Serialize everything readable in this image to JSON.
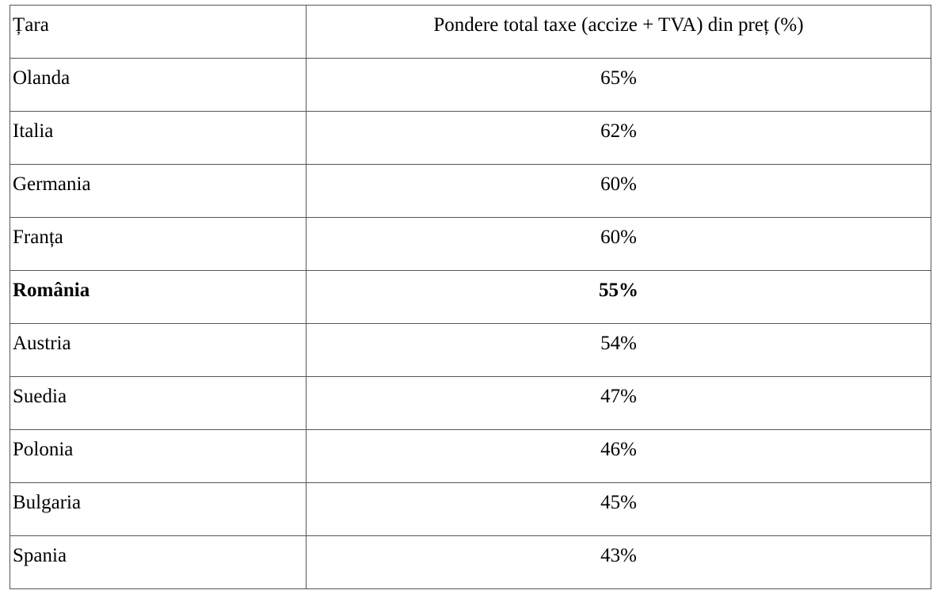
{
  "table": {
    "headers": [
      "Țara",
      "Pondere total taxe (accize + TVA) din preț (%)"
    ],
    "rows": [
      {
        "country": "Olanda",
        "share": "65%",
        "bold": false
      },
      {
        "country": "Italia",
        "share": "62%",
        "bold": false
      },
      {
        "country": "Germania",
        "share": "60%",
        "bold": false
      },
      {
        "country": "Franța",
        "share": "60%",
        "bold": false
      },
      {
        "country": "România",
        "share": "55%",
        "bold": true
      },
      {
        "country": "Austria",
        "share": "54%",
        "bold": false
      },
      {
        "country": "Suedia",
        "share": "47%",
        "bold": false
      },
      {
        "country": "Polonia",
        "share": "46%",
        "bold": false
      },
      {
        "country": "Bulgaria",
        "share": "45%",
        "bold": false
      },
      {
        "country": "Spania",
        "share": "43%",
        "bold": false
      }
    ]
  }
}
